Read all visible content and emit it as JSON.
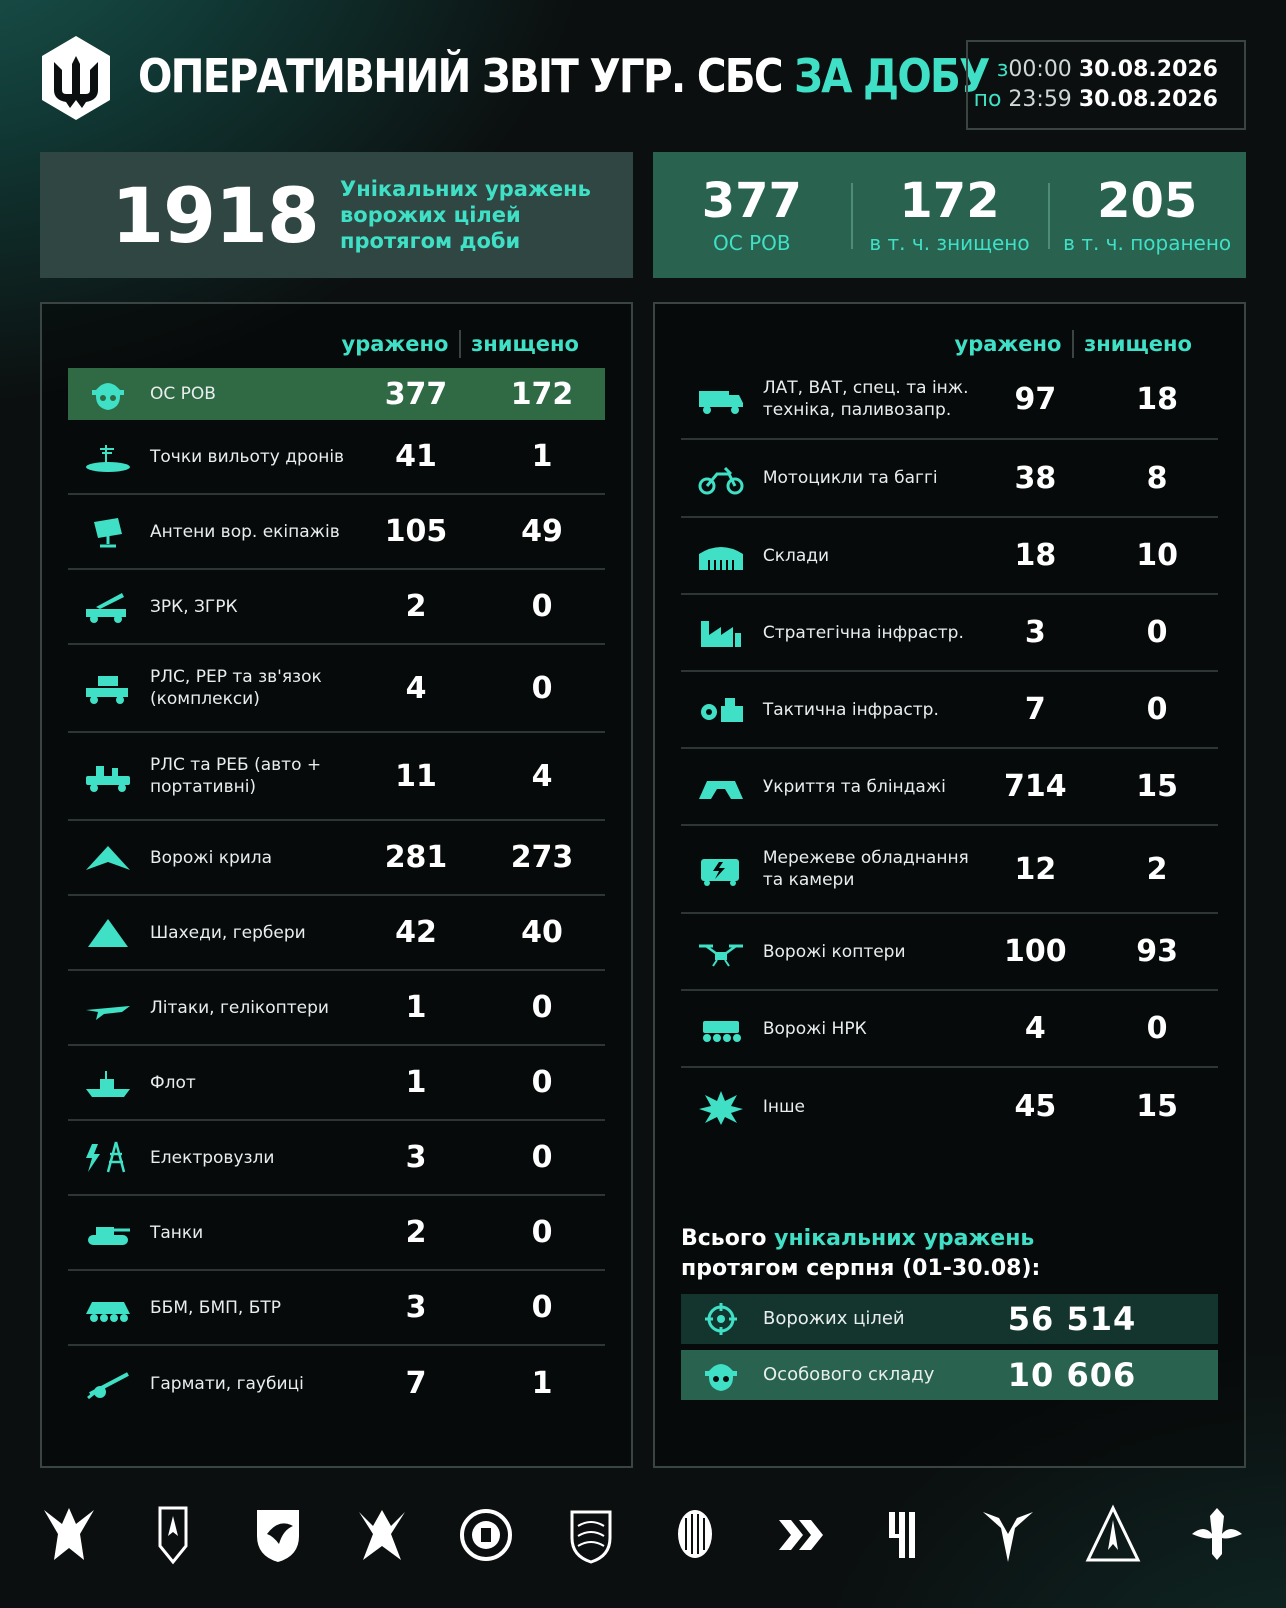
{
  "header": {
    "title_main": "ОПЕРАТИВНИЙ ЗВІТ УГР. СБС",
    "title_accent": "ЗА ДОБУ",
    "date_from_prefix": "з",
    "date_from_time": "00:00",
    "date_from_date": "30.08.2026",
    "date_to_prefix": "по",
    "date_to_time": "23:59",
    "date_to_date": "30.08.2026"
  },
  "summary": {
    "unique_hits": "1918",
    "unique_hits_label_1": "Унікальних уражень",
    "unique_hits_label_2": "ворожих цілей",
    "unique_hits_label_3": "протягом доби",
    "personnel": "377",
    "personnel_label": "ОС РОВ",
    "killed": "172",
    "killed_label": "в т. ч. знищено",
    "wounded": "205",
    "wounded_label": "в т. ч. поранено"
  },
  "columns": {
    "hit": "уражено",
    "destroyed": "знищено"
  },
  "left_rows": [
    {
      "icon": "soldier-icon",
      "l1": "ОС РОВ",
      "l2": "",
      "hit": "377",
      "destroyed": "172"
    },
    {
      "icon": "drone-launch-point-icon",
      "l1": "Точки вильоту дронів",
      "l2": "",
      "hit": "41",
      "destroyed": "1"
    },
    {
      "icon": "antenna-icon",
      "l1": "Антени вор. екіпажів",
      "l2": "",
      "hit": "105",
      "destroyed": "49"
    },
    {
      "icon": "air-defense-icon",
      "l1": "ЗРК, ЗГРК",
      "l2": "",
      "hit": "2",
      "destroyed": "0"
    },
    {
      "icon": "radar-truck-icon",
      "l1": "РЛС, РЕР та зв'язок",
      "l2": "(комплекси)",
      "hit": "4",
      "destroyed": "0"
    },
    {
      "icon": "ew-vehicle-icon",
      "l1": "РЛС та РЕБ (авто +",
      "l2": "портативні)",
      "hit": "11",
      "destroyed": "4"
    },
    {
      "icon": "fixed-wing-icon",
      "l1": "Ворожі крила",
      "l2": "",
      "hit": "281",
      "destroyed": "273"
    },
    {
      "icon": "shahed-icon",
      "l1": "Шахеди, гербери",
      "l2": "",
      "hit": "42",
      "destroyed": "40"
    },
    {
      "icon": "jet-icon",
      "l1": "Літаки, гелікоптери",
      "l2": "",
      "hit": "1",
      "destroyed": "0"
    },
    {
      "icon": "ship-icon",
      "l1": "Флот",
      "l2": "",
      "hit": "1",
      "destroyed": "0"
    },
    {
      "icon": "power-node-icon",
      "l1": "Електровузли",
      "l2": "",
      "hit": "3",
      "destroyed": "0"
    },
    {
      "icon": "tank-icon",
      "l1": "Танки",
      "l2": "",
      "hit": "2",
      "destroyed": "0"
    },
    {
      "icon": "apc-icon",
      "l1": "ББМ, БМП, БТР",
      "l2": "",
      "hit": "3",
      "destroyed": "0"
    },
    {
      "icon": "howitzer-icon",
      "l1": "Гармати, гаубиці",
      "l2": "",
      "hit": "7",
      "destroyed": "1"
    }
  ],
  "right_rows": [
    {
      "icon": "truck-icon",
      "l1": "ЛАТ, ВАТ, спец. та інж.",
      "l2": "техніка, паливозапр.",
      "hit": "97",
      "destroyed": "18"
    },
    {
      "icon": "motorcycle-icon",
      "l1": "Мотоцикли та баггі",
      "l2": "",
      "hit": "38",
      "destroyed": "8"
    },
    {
      "icon": "warehouse-icon",
      "l1": "Склади",
      "l2": "",
      "hit": "18",
      "destroyed": "10"
    },
    {
      "icon": "factory-icon",
      "l1": "Стратегічна інфрастр.",
      "l2": "",
      "hit": "3",
      "destroyed": "0"
    },
    {
      "icon": "tactical-infra-icon",
      "l1": "Тактична інфрастр.",
      "l2": "",
      "hit": "7",
      "destroyed": "0"
    },
    {
      "icon": "bunker-icon",
      "l1": "Укриття та бліндажі",
      "l2": "",
      "hit": "714",
      "destroyed": "15"
    },
    {
      "icon": "network-equipment-icon",
      "l1": "Мережеве обладнання",
      "l2": "та камери",
      "hit": "12",
      "destroyed": "2"
    },
    {
      "icon": "quadcopter-icon",
      "l1": "Ворожі коптери",
      "l2": "",
      "hit": "100",
      "destroyed": "93"
    },
    {
      "icon": "ground-robot-icon",
      "l1": "Ворожі НРК",
      "l2": "",
      "hit": "4",
      "destroyed": "0"
    },
    {
      "icon": "explosion-icon",
      "l1": "Інше",
      "l2": "",
      "hit": "45",
      "destroyed": "15"
    }
  ],
  "totals": {
    "heading_1": "Всього",
    "heading_accent": "унікальних уражень",
    "heading_2": "протягом серпня (01-30.08):",
    "targets_label": "Ворожих цілей",
    "targets_value": "56 514",
    "personnel_label": "Особового складу",
    "personnel_value": "10 606"
  },
  "colors": {
    "accent": "#3fe0c6",
    "highlight": "#2f6a45",
    "summary_green": "#29624f"
  }
}
